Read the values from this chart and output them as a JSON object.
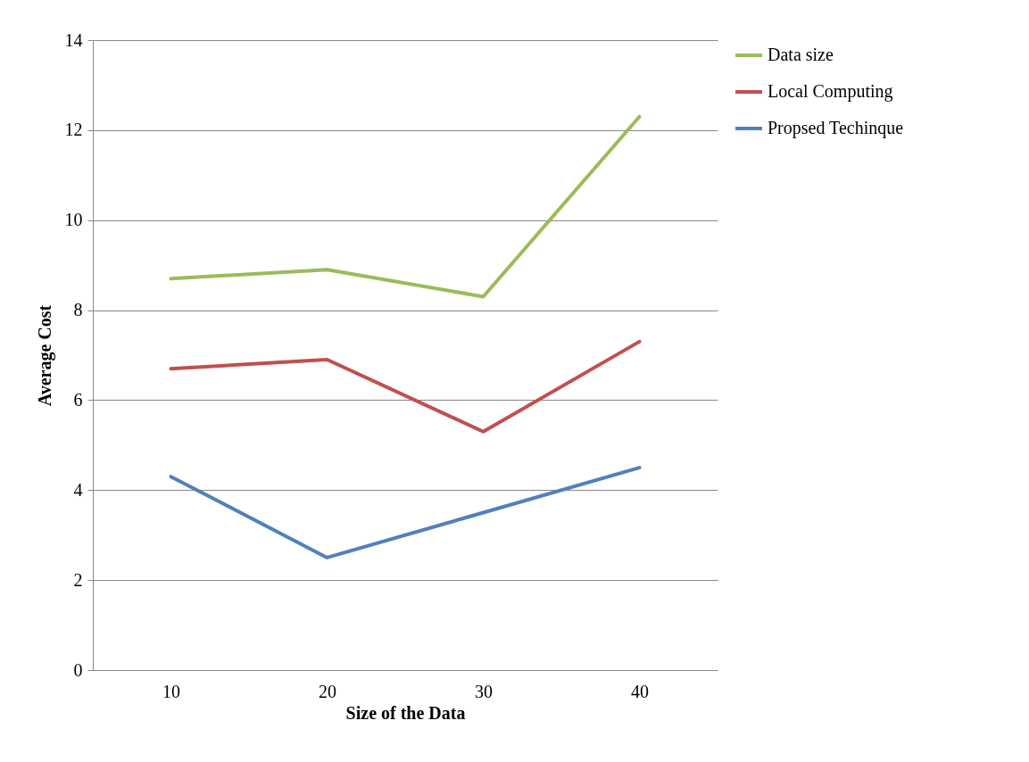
{
  "chart_data": {
    "type": "line",
    "xlabel": "Size of the Data",
    "ylabel": "Average Cost",
    "categories": [
      "10",
      "20",
      "30",
      "40"
    ],
    "series": [
      {
        "name": "Data size",
        "color": "#9bbb59",
        "values": [
          8.7,
          8.9,
          8.3,
          12.3
        ]
      },
      {
        "name": "Local Computing",
        "color": "#c0504d",
        "values": [
          6.7,
          6.9,
          5.3,
          7.3
        ]
      },
      {
        "name": "Propsed Techinque",
        "color": "#4f81bd",
        "values": [
          4.3,
          2.5,
          3.5,
          4.5
        ]
      }
    ],
    "ylim": [
      0,
      14
    ],
    "yticks": [
      0,
      2,
      4,
      6,
      8,
      10,
      12,
      14
    ],
    "grid": "y",
    "legend": "right",
    "marker": "none",
    "line_style": "solid"
  }
}
